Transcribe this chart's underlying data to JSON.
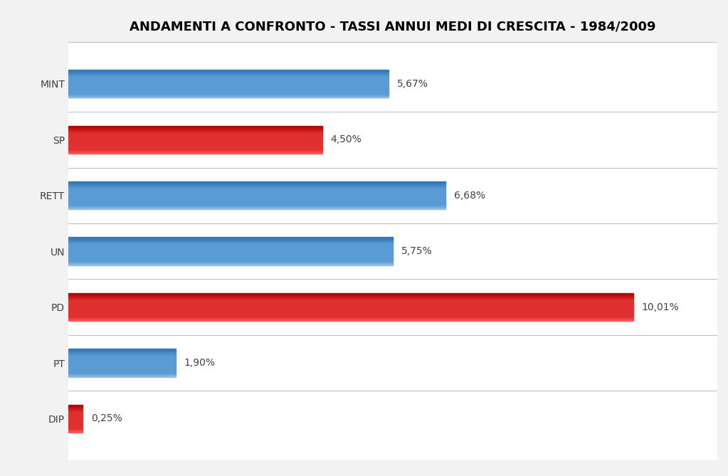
{
  "title": "ANDAMENTI A CONFRONTO - TASSI ANNUI MEDI DI CRESCITA - 1984/2009",
  "categories": [
    "MINT",
    "SP",
    "RETT",
    "UN",
    "PD",
    "PT",
    "DIP"
  ],
  "values": [
    5.67,
    4.5,
    6.68,
    5.75,
    10.01,
    1.9,
    0.25
  ],
  "labels": [
    "5,67%",
    "4,50%",
    "6,68%",
    "5,75%",
    "10,01%",
    "1,90%",
    "0,25%"
  ],
  "bar_types": [
    "blue",
    "red",
    "blue",
    "blue",
    "red",
    "blue",
    "red"
  ],
  "blue_main": "#5B9BD5",
  "blue_light": "#9DC3E6",
  "blue_dark": "#2E75B6",
  "red_main": "#E03030",
  "red_light": "#FF6060",
  "red_dark": "#B00000",
  "background_color": "#F2F2F2",
  "plot_bg_color": "#FFFFFF",
  "title_fontsize": 13,
  "label_fontsize": 10,
  "tick_fontsize": 10,
  "xlim_max": 11.5,
  "bar_height": 0.5,
  "grid_color": "#C0C0C0"
}
